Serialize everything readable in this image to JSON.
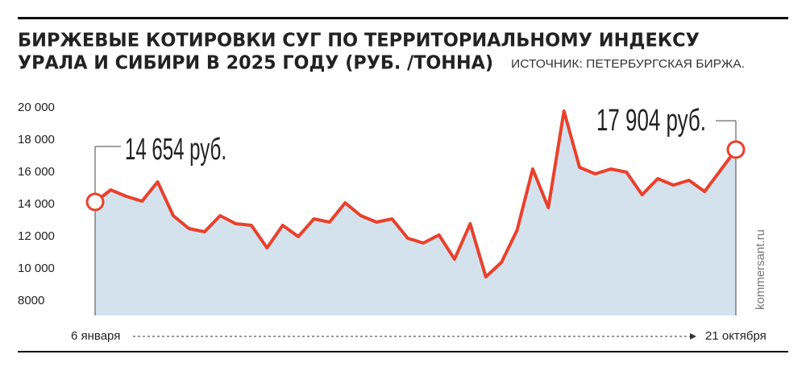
{
  "chart_data": {
    "type": "area-line",
    "title_lines": [
      "БИРЖЕВЫЕ КОТИРОВКИ СУГ ПО ТЕРРИТОРИАЛЬНОМУ ИНДЕКСУ",
      "УРАЛА И СИБИРИ В 2025 ГОДУ (РУБ. /ТОННА)"
    ],
    "source": "ИСТОЧНИК: ПЕТЕРБУРГСКАЯ БИРЖА.",
    "watermark": "kommersant.ru",
    "categories": [
      "6 января",
      null,
      null,
      null,
      null,
      null,
      null,
      null,
      null,
      null,
      null,
      null,
      null,
      null,
      null,
      null,
      null,
      null,
      null,
      null,
      null,
      null,
      null,
      null,
      null,
      null,
      null,
      null,
      null,
      null,
      null,
      null,
      null,
      null,
      null,
      null,
      null,
      null,
      null,
      null,
      null,
      "21 октября"
    ],
    "values": [
      14654,
      15400,
      15000,
      14700,
      15900,
      13800,
      13000,
      12800,
      13800,
      13300,
      13200,
      11800,
      13200,
      12500,
      13600,
      13400,
      14600,
      13800,
      13400,
      13600,
      12400,
      12100,
      12600,
      11100,
      13300,
      10000,
      10900,
      12900,
      16700,
      14300,
      20300,
      16800,
      16400,
      16700,
      16500,
      15100,
      16100,
      15700,
      16000,
      15300,
      16600,
      17904
    ],
    "value_labels": [
      "14 654 руб.",
      null,
      null,
      null,
      null,
      null,
      null,
      null,
      null,
      null,
      null,
      null,
      null,
      null,
      null,
      null,
      null,
      null,
      null,
      null,
      null,
      null,
      null,
      null,
      null,
      null,
      null,
      null,
      null,
      null,
      null,
      null,
      null,
      null,
      null,
      null,
      null,
      null,
      null,
      null,
      null,
      "17 904 руб."
    ],
    "color": "#e8412c",
    "area_color": "#d4e2ee",
    "ylim": [
      7600,
      20000
    ],
    "yticks": [
      8000,
      {
        "value": 10000,
        "label": "10 000"
      },
      {
        "value": 12000,
        "label": "12 000"
      },
      {
        "value": 14000,
        "label": "14 000"
      },
      {
        "value": 16000,
        "label": "16 000"
      },
      {
        "value": 18000,
        "label": "18 000"
      },
      {
        "value": 20000,
        "label": "20 000"
      }
    ],
    "grid": false
  }
}
